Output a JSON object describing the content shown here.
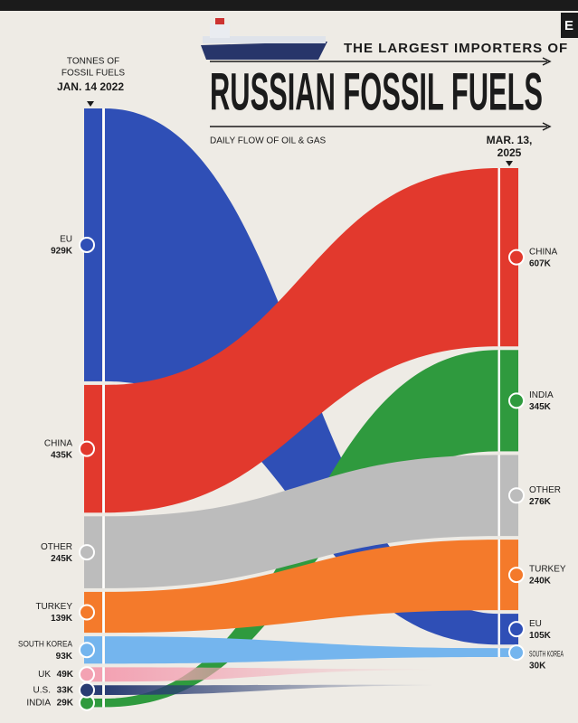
{
  "chart_data": {
    "type": "flow",
    "brand": "E",
    "subtitle": "THE LARGEST IMPORTERS OF",
    "title": "RUSSIAN FOSSIL FUELS",
    "note": "DAILY FLOW OF OIL & GAS",
    "unit_label": [
      "TONNES OF",
      "FOSSIL FUELS"
    ],
    "left_date": "JAN. 14 2022",
    "right_date": [
      "MAR. 13,",
      "2025"
    ],
    "series": [
      {
        "name": "EU",
        "color": "#2f4fb6",
        "values": [
          929000,
          105000
        ],
        "value_labels": [
          "929K",
          "105K"
        ]
      },
      {
        "name": "CHINA",
        "color": "#e2392d",
        "values": [
          435000,
          607000
        ],
        "value_labels": [
          "435K",
          "607K"
        ]
      },
      {
        "name": "INDIA",
        "color": "#2f9a3e",
        "values": [
          29000,
          345000
        ],
        "value_labels": [
          "29K",
          "345K"
        ]
      },
      {
        "name": "OTHER",
        "color": "#bcbcbc",
        "values": [
          245000,
          276000
        ],
        "value_labels": [
          "245K",
          "276K"
        ]
      },
      {
        "name": "TURKEY",
        "color": "#f47a2b",
        "values": [
          139000,
          240000
        ],
        "value_labels": [
          "139K",
          "240K"
        ]
      },
      {
        "name": "SOUTH KOREA",
        "color": "#74b5ee",
        "values": [
          93000,
          30000
        ],
        "value_labels": [
          "93K",
          "30K"
        ]
      },
      {
        "name": "UK",
        "color": "#f3a2b3",
        "values": [
          49000,
          null
        ],
        "value_labels": [
          "49K",
          null
        ]
      },
      {
        "name": "U.S.",
        "color": "#2a3d73",
        "values": [
          33000,
          null
        ],
        "value_labels": [
          "33K",
          null
        ]
      }
    ]
  }
}
